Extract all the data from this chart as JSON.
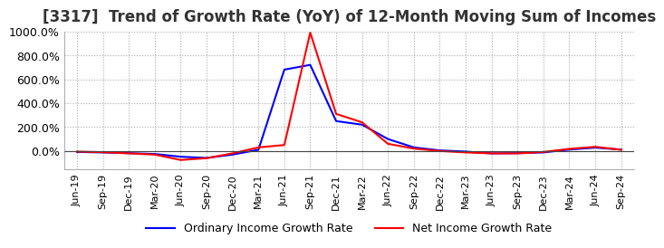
{
  "title": "[3317]  Trend of Growth Rate (YoY) of 12-Month Moving Sum of Incomes",
  "title_fontsize": 12,
  "ylim": [
    -150,
    1000
  ],
  "yticks": [
    0.0,
    200.0,
    400.0,
    600.0,
    800.0,
    1000.0
  ],
  "background_color": "#ffffff",
  "grid_color": "#aaaaaa",
  "line_blue": "#0000ff",
  "line_red": "#ff0000",
  "legend_labels": [
    "Ordinary Income Growth Rate",
    "Net Income Growth Rate"
  ],
  "x_labels": [
    "Jun-19",
    "Sep-19",
    "Dec-19",
    "Mar-20",
    "Jun-20",
    "Sep-20",
    "Dec-20",
    "Mar-21",
    "Jun-21",
    "Sep-21",
    "Dec-21",
    "Mar-22",
    "Jun-22",
    "Sep-22",
    "Dec-22",
    "Mar-23",
    "Jun-23",
    "Sep-23",
    "Dec-23",
    "Mar-24",
    "Jun-24",
    "Sep-24"
  ],
  "ordinary_income_growth": [
    -8,
    -12,
    -18,
    -25,
    -48,
    -58,
    -30,
    10,
    680,
    720,
    250,
    220,
    100,
    30,
    5,
    -5,
    -20,
    -18,
    -12,
    12,
    28,
    12
  ],
  "net_income_growth": [
    -5,
    -10,
    -20,
    -30,
    -75,
    -60,
    -20,
    30,
    50,
    990,
    310,
    240,
    60,
    20,
    0,
    -12,
    -20,
    -20,
    -8,
    18,
    35,
    10
  ]
}
